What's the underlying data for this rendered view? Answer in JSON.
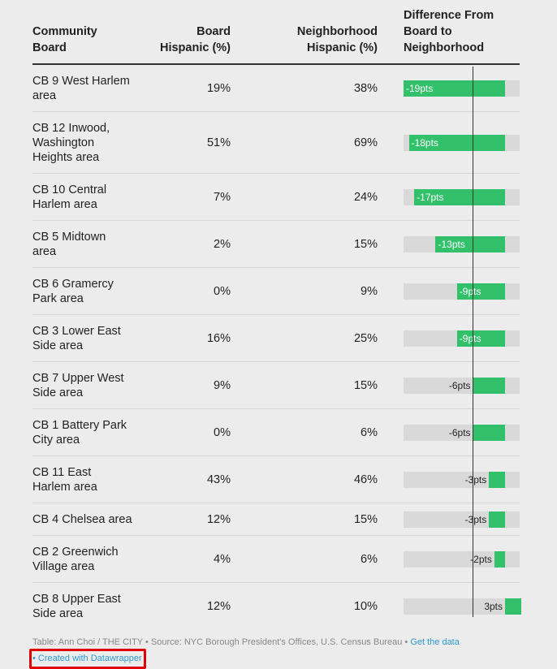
{
  "header": {
    "board": "Community\nBoard",
    "board_hispanic": "Board\nHispanic (%)",
    "neighborhood_hispanic": "Neighborhood\nHispanic (%)",
    "difference": "Difference From\nBoard to\nNeighborhood"
  },
  "rows": [
    {
      "board": "CB 9 West Harlem area",
      "board_pct": "19%",
      "neigh_pct": "38%",
      "diff_label": "-19pts",
      "diff_value": -19
    },
    {
      "board": "CB 12 Inwood, Washington Heights area",
      "board_pct": "51%",
      "neigh_pct": "69%",
      "diff_label": "-18pts",
      "diff_value": -18
    },
    {
      "board": "CB 10 Central Harlem area",
      "board_pct": "7%",
      "neigh_pct": "24%",
      "diff_label": "-17pts",
      "diff_value": -17
    },
    {
      "board": "CB 5 Midtown area",
      "board_pct": "2%",
      "neigh_pct": "15%",
      "diff_label": "-13pts",
      "diff_value": -13
    },
    {
      "board": "CB 6 Gramercy Park area",
      "board_pct": "0%",
      "neigh_pct": "9%",
      "diff_label": "-9pts",
      "diff_value": -9
    },
    {
      "board": "CB 3 Lower East Side area",
      "board_pct": "16%",
      "neigh_pct": "25%",
      "diff_label": "-9pts",
      "diff_value": -9
    },
    {
      "board": "CB 7 Upper West Side area",
      "board_pct": "9%",
      "neigh_pct": "15%",
      "diff_label": "-6pts",
      "diff_value": -6
    },
    {
      "board": "CB 1 Battery Park City area",
      "board_pct": "0%",
      "neigh_pct": "6%",
      "diff_label": "-6pts",
      "diff_value": -6
    },
    {
      "board": "CB 11 East Harlem area",
      "board_pct": "43%",
      "neigh_pct": "46%",
      "diff_label": "-3pts",
      "diff_value": -3
    },
    {
      "board": "CB 4 Chelsea area",
      "board_pct": "12%",
      "neigh_pct": "15%",
      "diff_label": "-3pts",
      "diff_value": -3
    },
    {
      "board": "CB 2 Greenwich Village area",
      "board_pct": "4%",
      "neigh_pct": "6%",
      "diff_label": "-2pts",
      "diff_value": -2
    },
    {
      "board": "CB 8 Upper East Side area",
      "board_pct": "12%",
      "neigh_pct": "10%",
      "diff_label": "3pts",
      "diff_value": 3
    }
  ],
  "colors": {
    "bar_fill": "#32c16a",
    "bar_track": "#d9d9d9",
    "link": "#2a9ad0",
    "highlight": "#e00000"
  },
  "footer": {
    "source_text": "Table: Ann Choi / THE CITY • Source: NYC Borough President's Offices, U.S. Census Bureau •",
    "get_data": "Get the data",
    "created_with": "• Created with Datawrapper"
  }
}
